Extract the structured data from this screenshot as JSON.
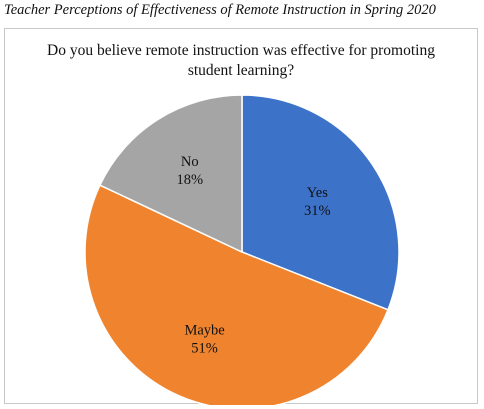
{
  "caption": "Teacher Perceptions of Effectiveness of Remote Instruction in Spring 2020",
  "chart_data": {
    "type": "pie",
    "title": "Do you believe remote instruction was effective for promoting student learning?",
    "slices": [
      {
        "label": "Yes",
        "value": 31,
        "value_label": "31%",
        "color": "#3c73c9"
      },
      {
        "label": "Maybe",
        "value": 51,
        "value_label": "51%",
        "color": "#f0842e"
      },
      {
        "label": "No",
        "value": 18,
        "value_label": "18%",
        "color": "#a5a5a5"
      }
    ],
    "legend": "none",
    "start": "12 o'clock, clockwise"
  }
}
